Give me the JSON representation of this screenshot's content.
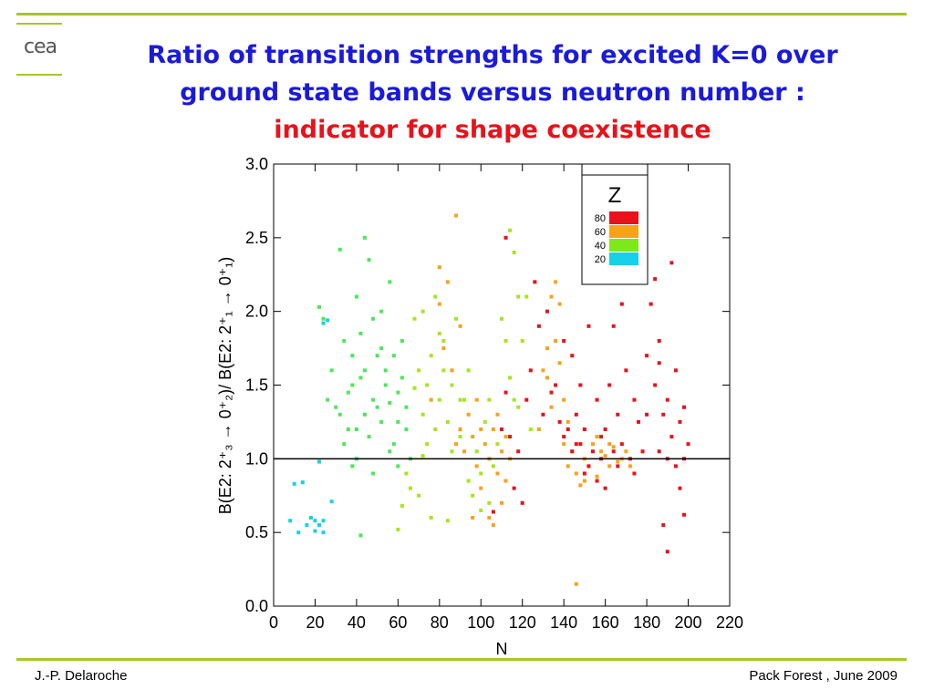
{
  "slide": {
    "title_line1": "Ratio of transition strengths for excited K=0 over",
    "title_line2": "ground state bands versus neutron number :",
    "title_line3": "indicator for shape coexistence",
    "footer_left": "J.-P. Delaroche",
    "footer_right": "Pack Forest , June 2009",
    "logo_text": "cea",
    "accent_color": "#a6c629",
    "title_color": "#1a1adb",
    "highlight_color": "#e8121a"
  },
  "chart_data": {
    "type": "scatter",
    "xlabel": "N",
    "ylabel": "B(E2: 2⁺₃ → 0⁺₂)/ B(E2: 2⁺₁ → 0⁺₁)",
    "xlim": [
      0,
      220
    ],
    "ylim": [
      0,
      3.0
    ],
    "x_ticks": [
      "0",
      "20",
      "40",
      "60",
      "80",
      "100",
      "120",
      "140",
      "160",
      "180",
      "200",
      "220"
    ],
    "y_ticks": [
      "0.0",
      "0.5",
      "1.0",
      "1.5",
      "2.0",
      "2.5",
      "3.0"
    ],
    "reference_line": 1.0,
    "legend": {
      "title": "Z",
      "entries": [
        {
          "label": "80",
          "color": "#e8121a"
        },
        {
          "label": "60",
          "color": "#f7a21b"
        },
        {
          "label": "40",
          "color": "#7fe81a"
        },
        {
          "label": "20",
          "color": "#16d1e8"
        }
      ],
      "placement": "top-right"
    },
    "series": [
      {
        "color": "#16d1e8",
        "points": [
          [
            8,
            0.58
          ],
          [
            10,
            0.83
          ],
          [
            12,
            0.5
          ],
          [
            14,
            0.84
          ],
          [
            16,
            0.55
          ],
          [
            18,
            0.6
          ],
          [
            20,
            0.58
          ],
          [
            20,
            0.51
          ],
          [
            22,
            0.55
          ],
          [
            24,
            0.5
          ],
          [
            24,
            0.58
          ],
          [
            22,
            0.98
          ],
          [
            24,
            1.92
          ],
          [
            26,
            1.94
          ],
          [
            28,
            0.71
          ]
        ]
      },
      {
        "color": "#4be85a",
        "points": [
          [
            22,
            2.03
          ],
          [
            24,
            1.95
          ],
          [
            26,
            1.4
          ],
          [
            28,
            1.6
          ],
          [
            30,
            1.35
          ],
          [
            32,
            2.42
          ],
          [
            32,
            1.3
          ],
          [
            34,
            1.8
          ],
          [
            36,
            1.45
          ],
          [
            38,
            1.7
          ],
          [
            40,
            2.1
          ],
          [
            40,
            1.2
          ],
          [
            42,
            1.55
          ],
          [
            42,
            1.85
          ],
          [
            44,
            2.5
          ],
          [
            44,
            1.3
          ],
          [
            46,
            2.35
          ],
          [
            48,
            1.95
          ],
          [
            48,
            1.4
          ],
          [
            50,
            1.7
          ],
          [
            52,
            1.25
          ],
          [
            52,
            2.0
          ],
          [
            54,
            1.6
          ],
          [
            56,
            2.2
          ],
          [
            58,
            1.1
          ],
          [
            60,
            1.45
          ],
          [
            62,
            1.8
          ],
          [
            64,
            1.35
          ],
          [
            66,
            1.0
          ],
          [
            34,
            1.1
          ],
          [
            36,
            1.2
          ],
          [
            38,
            1.5
          ],
          [
            40,
            1.0
          ],
          [
            44,
            1.6
          ],
          [
            46,
            1.15
          ],
          [
            50,
            1.35
          ],
          [
            54,
            1.5
          ],
          [
            56,
            1.05
          ],
          [
            58,
            1.7
          ],
          [
            60,
            1.25
          ],
          [
            62,
            1.55
          ],
          [
            38,
            0.95
          ],
          [
            42,
            0.48
          ],
          [
            48,
            0.9
          ],
          [
            52,
            1.75
          ],
          [
            56,
            1.38
          ],
          [
            60,
            0.95
          ],
          [
            64,
            1.2
          ]
        ]
      },
      {
        "color": "#a5e61e",
        "points": [
          [
            60,
            0.52
          ],
          [
            62,
            0.68
          ],
          [
            64,
            0.9
          ],
          [
            66,
            0.8
          ],
          [
            68,
            1.48
          ],
          [
            68,
            1.95
          ],
          [
            70,
            1.6
          ],
          [
            70,
            0.75
          ],
          [
            72,
            1.3
          ],
          [
            72,
            2.0
          ],
          [
            74,
            1.5
          ],
          [
            74,
            1.1
          ],
          [
            76,
            1.7
          ],
          [
            76,
            0.6
          ],
          [
            78,
            2.1
          ],
          [
            80,
            1.4
          ],
          [
            80,
            1.85
          ],
          [
            82,
            1.6
          ],
          [
            84,
            1.25
          ],
          [
            84,
            0.58
          ],
          [
            86,
            1.5
          ],
          [
            88,
            1.95
          ],
          [
            90,
            1.15
          ],
          [
            92,
            1.4
          ],
          [
            94,
            0.85
          ],
          [
            96,
            0.75
          ],
          [
            98,
            1.05
          ],
          [
            100,
            0.9
          ],
          [
            102,
            1.25
          ],
          [
            104,
            0.7
          ],
          [
            106,
            0.95
          ],
          [
            108,
            1.1
          ],
          [
            110,
            1.95
          ],
          [
            112,
            1.8
          ],
          [
            114,
            1.55
          ],
          [
            114,
            2.55
          ],
          [
            116,
            1.4
          ],
          [
            116,
            2.4
          ],
          [
            118,
            2.1
          ],
          [
            118,
            1.35
          ],
          [
            120,
            1.8
          ],
          [
            122,
            2.1
          ],
          [
            124,
            1.2
          ],
          [
            72,
            1.02
          ],
          [
            78,
            1.2
          ],
          [
            82,
            1.8
          ],
          [
            86,
            1.05
          ],
          [
            90,
            1.4
          ],
          [
            94,
            1.6
          ],
          [
            100,
            0.65
          ],
          [
            104,
            1.4
          ]
        ]
      },
      {
        "color": "#f7a21b",
        "points": [
          [
            76,
            1.4
          ],
          [
            80,
            2.05
          ],
          [
            80,
            2.3
          ],
          [
            82,
            1.75
          ],
          [
            84,
            2.2
          ],
          [
            86,
            1.6
          ],
          [
            88,
            2.65
          ],
          [
            88,
            1.1
          ],
          [
            90,
            1.9
          ],
          [
            90,
            1.2
          ],
          [
            92,
            1.05
          ],
          [
            94,
            1.3
          ],
          [
            96,
            1.15
          ],
          [
            98,
            0.95
          ],
          [
            100,
            1.2
          ],
          [
            100,
            0.8
          ],
          [
            102,
            1.1
          ],
          [
            104,
            1.0
          ],
          [
            104,
            0.6
          ],
          [
            106,
            1.2
          ],
          [
            108,
            0.9
          ],
          [
            108,
            1.3
          ],
          [
            110,
            1.05
          ],
          [
            112,
            0.85
          ],
          [
            114,
            1.0
          ],
          [
            96,
            0.6
          ],
          [
            98,
            1.4
          ],
          [
            106,
            0.55
          ],
          [
            110,
            0.7
          ],
          [
            112,
            1.15
          ],
          [
            130,
            1.6
          ],
          [
            132,
            1.55
          ],
          [
            134,
            1.35
          ],
          [
            134,
            2.1
          ],
          [
            136,
            2.2
          ],
          [
            136,
            1.8
          ],
          [
            138,
            1.65
          ],
          [
            138,
            2.05
          ],
          [
            140,
            1.4
          ],
          [
            140,
            1.1
          ],
          [
            142,
            0.95
          ],
          [
            144,
            1.05
          ],
          [
            146,
            0.9
          ],
          [
            146,
            0.15
          ],
          [
            148,
            0.82
          ],
          [
            150,
            1.0
          ],
          [
            152,
            0.95
          ],
          [
            154,
            1.1
          ],
          [
            156,
            0.88
          ],
          [
            158,
            1.05
          ],
          [
            160,
            1.02
          ],
          [
            162,
            0.95
          ],
          [
            164,
            1.08
          ],
          [
            166,
            0.98
          ],
          [
            168,
            1.0
          ],
          [
            170,
            1.05
          ],
          [
            172,
            0.95
          ],
          [
            128,
            1.2
          ],
          [
            132,
            1.75
          ],
          [
            142,
            1.25
          ],
          [
            150,
            0.85
          ],
          [
            156,
            1.15
          ],
          [
            162,
            1.1
          ]
        ]
      },
      {
        "color": "#e8121a",
        "points": [
          [
            106,
            0.64
          ],
          [
            110,
            1.2
          ],
          [
            112,
            1.45
          ],
          [
            112,
            2.5
          ],
          [
            114,
            1.15
          ],
          [
            116,
            0.8
          ],
          [
            118,
            1.05
          ],
          [
            120,
            0.7
          ],
          [
            122,
            1.4
          ],
          [
            124,
            1.6
          ],
          [
            126,
            2.2
          ],
          [
            128,
            1.9
          ],
          [
            130,
            1.3
          ],
          [
            132,
            2.0
          ],
          [
            134,
            1.45
          ],
          [
            136,
            1.5
          ],
          [
            138,
            1.25
          ],
          [
            140,
            1.15
          ],
          [
            140,
            1.8
          ],
          [
            142,
            1.2
          ],
          [
            144,
            1.05
          ],
          [
            144,
            1.7
          ],
          [
            146,
            1.3
          ],
          [
            148,
            1.1
          ],
          [
            148,
            1.5
          ],
          [
            150,
            1.2
          ],
          [
            152,
            0.95
          ],
          [
            152,
            1.9
          ],
          [
            154,
            1.05
          ],
          [
            156,
            1.4
          ],
          [
            156,
            0.85
          ],
          [
            158,
            1.0
          ],
          [
            160,
            1.2
          ],
          [
            160,
            0.8
          ],
          [
            162,
            1.5
          ],
          [
            164,
            1.05
          ],
          [
            164,
            1.9
          ],
          [
            166,
            1.3
          ],
          [
            168,
            1.1
          ],
          [
            170,
            1.6
          ],
          [
            172,
            1.0
          ],
          [
            174,
            1.4
          ],
          [
            176,
            1.25
          ],
          [
            178,
            1.05
          ],
          [
            180,
            1.7
          ],
          [
            182,
            2.05
          ],
          [
            184,
            1.5
          ],
          [
            184,
            2.22
          ],
          [
            186,
            1.65
          ],
          [
            186,
            1.05
          ],
          [
            188,
            1.3
          ],
          [
            188,
            0.55
          ],
          [
            190,
            1.4
          ],
          [
            190,
            0.37
          ],
          [
            192,
            1.15
          ],
          [
            192,
            2.33
          ],
          [
            194,
            0.95
          ],
          [
            196,
            1.25
          ],
          [
            196,
            0.8
          ],
          [
            198,
            1.0
          ],
          [
            198,
            0.62
          ],
          [
            200,
            1.1
          ],
          [
            186,
            1.8
          ],
          [
            190,
            1.0
          ],
          [
            194,
            1.6
          ],
          [
            198,
            1.35
          ],
          [
            146,
            1.1
          ],
          [
            150,
            0.9
          ],
          [
            158,
            1.15
          ],
          [
            166,
            0.95
          ],
          [
            168,
            2.05
          ],
          [
            174,
            0.9
          ],
          [
            180,
            1.3
          ]
        ]
      }
    ]
  }
}
